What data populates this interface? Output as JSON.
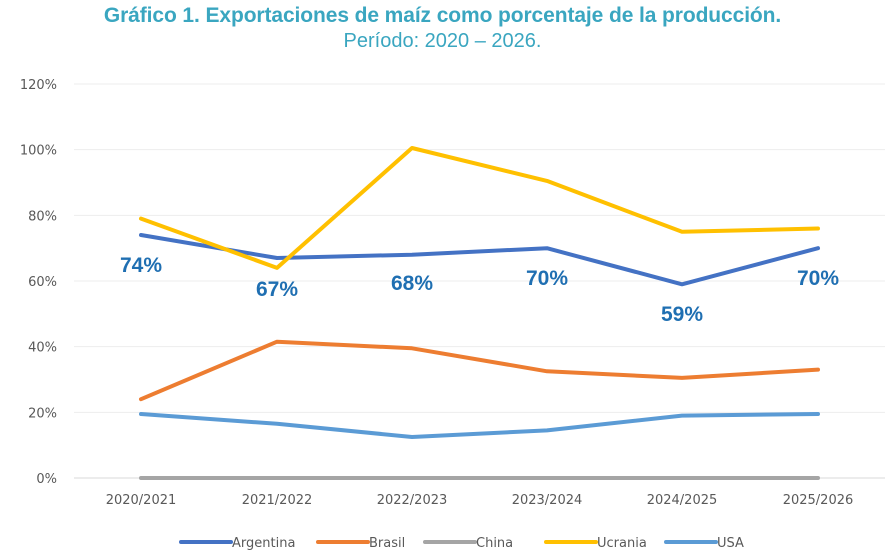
{
  "chart_data": {
    "type": "line",
    "title": "Gráfico 1. Exportaciones de maíz como porcentaje de la producción.",
    "subtitle": "Período: 2020 – 2026.",
    "xlabel": "",
    "ylabel": "",
    "categories": [
      "2020/2021",
      "2021/2022",
      "2022/2023",
      "2023/2024",
      "2024/2025",
      "2025/2026"
    ],
    "ylim": [
      0,
      120
    ],
    "yticks": [
      0,
      20,
      40,
      60,
      80,
      100,
      120
    ],
    "ytick_labels": [
      "0%",
      "20%",
      "40%",
      "60%",
      "80%",
      "100%",
      "120%"
    ],
    "grid": true,
    "legend_position": "bottom",
    "series": [
      {
        "name": "Argentina",
        "color": "#4472c4",
        "values": [
          74,
          67,
          68,
          70,
          59,
          70
        ]
      },
      {
        "name": "Brasil",
        "color": "#ed7d31",
        "values": [
          24,
          41.5,
          39.5,
          32.5,
          30.5,
          33
        ]
      },
      {
        "name": "China",
        "color": "#a5a5a5",
        "values": [
          0,
          0,
          0,
          0,
          0,
          0
        ]
      },
      {
        "name": "Ucrania",
        "color": "#ffc000",
        "values": [
          79,
          64,
          100.5,
          90.5,
          75,
          76
        ]
      },
      {
        "name": "USA",
        "color": "#5b9bd5",
        "values": [
          19.5,
          16.5,
          12.5,
          14.5,
          19,
          19.5
        ]
      }
    ],
    "data_labels": {
      "series": "Argentina",
      "color": "#1f6fb2",
      "labels": [
        "74%",
        "67%",
        "68%",
        "70%",
        "59%",
        "70%"
      ]
    }
  }
}
